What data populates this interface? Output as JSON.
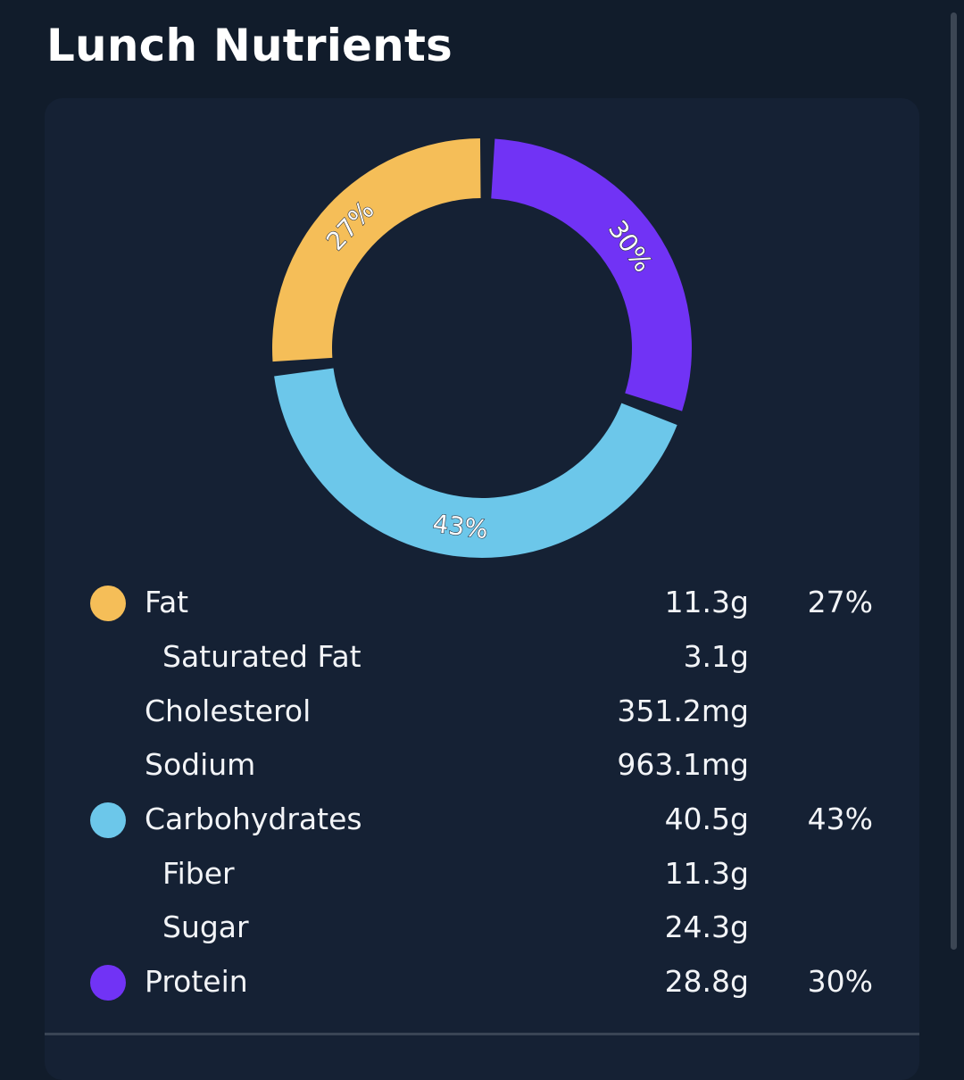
{
  "header": {
    "title": "Lunch Nutrients"
  },
  "colors": {
    "fat": "#f5be58",
    "carbohydrates": "#6cc7ea",
    "protein": "#7133f5",
    "background": "#111c2b",
    "card": "#152134"
  },
  "chart_data": {
    "type": "pie",
    "variant": "donut",
    "slices": [
      {
        "name": "Fat",
        "value": 27,
        "label": "27%",
        "color": "#f5be58"
      },
      {
        "name": "Carbohydrates",
        "value": 43,
        "label": "43%",
        "color": "#6cc7ea"
      },
      {
        "name": "Protein",
        "value": 30,
        "label": "30%",
        "color": "#7133f5"
      }
    ]
  },
  "nutrients": [
    {
      "name": "Fat",
      "amount": "11.3g",
      "percent": "27%",
      "dot_color": "#f5be58",
      "sub": false
    },
    {
      "name": "Saturated Fat",
      "amount": "3.1g",
      "percent": "",
      "dot_color": "",
      "sub": true
    },
    {
      "name": "Cholesterol",
      "amount": "351.2mg",
      "percent": "",
      "dot_color": "",
      "sub": false
    },
    {
      "name": "Sodium",
      "amount": "963.1mg",
      "percent": "",
      "dot_color": "",
      "sub": false
    },
    {
      "name": "Carbohydrates",
      "amount": "40.5g",
      "percent": "43%",
      "dot_color": "#6cc7ea",
      "sub": false
    },
    {
      "name": "Fiber",
      "amount": "11.3g",
      "percent": "",
      "dot_color": "",
      "sub": true
    },
    {
      "name": "Sugar",
      "amount": "24.3g",
      "percent": "",
      "dot_color": "",
      "sub": true
    },
    {
      "name": "Protein",
      "amount": "28.8g",
      "percent": "30%",
      "dot_color": "#7133f5",
      "sub": false
    }
  ]
}
